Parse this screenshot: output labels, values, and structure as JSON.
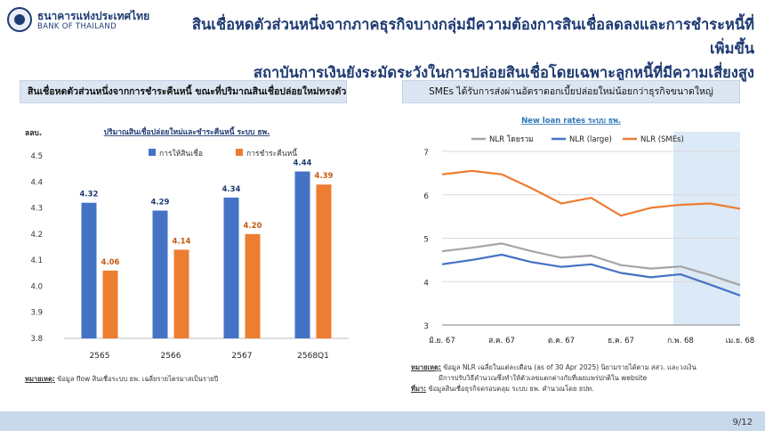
{
  "header": {
    "logo_th": "ธนาคารแห่งประเทศไทย",
    "logo_en": "BANK OF THAILAND",
    "title_line1": "สินเชื่อหดตัวส่วนหนึ่งจากภาคธุรกิจบางกลุ่มมีความต้องการสินเชื่อลดลงและการชำระหนี้ที่เพิ่มขึ้น",
    "title_line2": "สถาบันการเงินยังระมัดระวังในการปล่อยสินเชื่อโดยเฉพาะลูกหนี้ที่มีความเสี่ยงสูง"
  },
  "left_panel": {
    "heading": "สินเชื่อหดตัวส่วนหนึ่งจากการชำระคืนหนี้ ขณะที่ปริมาณสินเชื่อปล่อยใหม่ทรงตัว",
    "note_label": "หมายเหตุ:",
    "note_text": " ข้อมูล flow สินเชื่อระบบ ธพ. เฉลี่ยรายไตรมาสเป็นรายปี"
  },
  "right_panel": {
    "heading": "SMEs ได้รับการส่งผ่านอัตราดอกเบี้ยปล่อยใหม่น้อยกว่าธุรกิจขนาดใหญ่",
    "note_label": "หมายเหตุ:",
    "note_text": " ข้อมูล NLR เฉลี่ยในแต่ละเดือน (as of 30 Apr 2025) นิยามรายได้ตาม สสว. และวงเงิน",
    "note_text2": "มีการปรับวิธีคำนวณซึ่งทำให้ตัวเลขแตกต่างกับที่เผยแพร่ปกติใน website",
    "source_label": "ที่มา:",
    "source_text": " ข้อมูลสินเชื่อธุรกิจครอบคลุม ระบบ ธพ. คำนวณโดย ธปท."
  },
  "footer": {
    "page": "9/12"
  },
  "colors": {
    "navy": "#1f3b73",
    "blue": "#4472c4",
    "orange": "#ed7d31",
    "gray": "#a5a5a5",
    "highlight": "#dce9f6"
  },
  "chart_data": [
    {
      "type": "bar",
      "title": "ปริมาณสินเชื่อปล่อยใหม่และชำระคืนหนี้ ระบบ ธพ.",
      "ylabel": "ลลบ.",
      "xlabel": "",
      "categories": [
        "2565",
        "2566",
        "2567",
        "2568Q1"
      ],
      "series": [
        {
          "name": "การให้สินเชื่อ",
          "values": [
            4.32,
            4.29,
            4.34,
            4.44
          ],
          "color": "#4472c4"
        },
        {
          "name": "การชำระคืนหนี้",
          "values": [
            4.06,
            4.14,
            4.2,
            4.39
          ],
          "color": "#ed7d31"
        }
      ],
      "ylim": [
        3.8,
        4.5
      ],
      "yticks": [
        "3.8",
        "3.9",
        "4.0",
        "4.1",
        "4.2",
        "4.3",
        "4.4",
        "4.5"
      ],
      "legend": "top",
      "grid": false
    },
    {
      "type": "line",
      "title": "New loan rates ระบบ ธพ.",
      "xlabel": "",
      "ylabel": "",
      "x_ticks": [
        "มิ.ย. 67",
        "ส.ค. 67",
        "ต.ค. 67",
        "ธ.ค. 67",
        "ก.พ. 68",
        "เม.ย. 68"
      ],
      "x": [
        "มิ.ย. 67",
        "ก.ค. 67",
        "ส.ค. 67",
        "ก.ย. 67",
        "ต.ค. 67",
        "พ.ย. 67",
        "ธ.ค. 67",
        "ม.ค. 68",
        "ก.พ. 68",
        "มี.ค. 68",
        "เม.ย. 68"
      ],
      "series": [
        {
          "name": "NLR โดยรวม",
          "color": "#a5a5a5",
          "values": [
            4.7,
            4.78,
            4.88,
            4.7,
            4.55,
            4.6,
            4.38,
            4.3,
            4.35,
            4.15,
            3.92
          ]
        },
        {
          "name": "NLR (large)",
          "color": "#4472c4",
          "values": [
            4.4,
            4.5,
            4.62,
            4.45,
            4.34,
            4.4,
            4.2,
            4.1,
            4.17,
            3.93,
            3.68
          ]
        },
        {
          "name": "NLR (SMEs)",
          "color": "#ed7d31",
          "values": [
            6.47,
            6.55,
            6.47,
            6.15,
            5.8,
            5.93,
            5.52,
            5.7,
            5.77,
            5.8,
            5.68
          ]
        }
      ],
      "ylim": [
        3,
        7
      ],
      "yticks": [
        "3",
        "4",
        "5",
        "6",
        "7"
      ],
      "highlight_range": [
        "ก.พ. 68",
        "เม.ย. 68"
      ],
      "legend": "top",
      "grid": true
    }
  ]
}
